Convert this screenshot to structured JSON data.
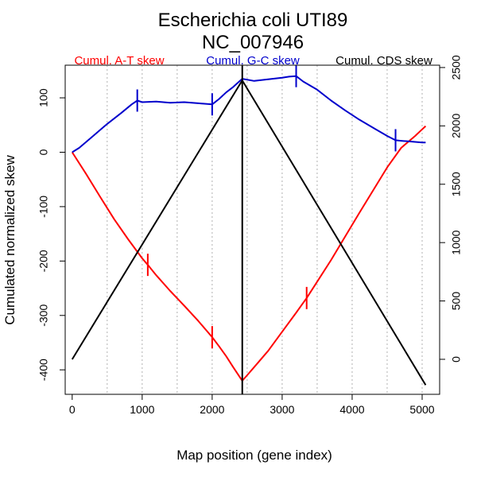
{
  "chart_data": {
    "type": "line",
    "title": "Escherichia coli UTI89",
    "subtitle": "NC_007946",
    "xlabel": "Map position (gene index)",
    "ylabel": "Cumulated normalized skew",
    "xlim": [
      -100,
      5250
    ],
    "ylim": [
      -445,
      160
    ],
    "y2lim": [
      -300,
      2520
    ],
    "x_ticks": [
      0,
      1000,
      2000,
      3000,
      4000,
      5000
    ],
    "y_ticks": [
      -400,
      -300,
      -200,
      -100,
      0,
      100
    ],
    "y2_ticks": [
      0,
      500,
      1000,
      1500,
      2000,
      2500
    ],
    "x_gridlines": [
      500,
      1000,
      1500,
      2000,
      2500,
      3000,
      3500,
      4000,
      4500,
      5000
    ],
    "grid": "vertical-dotted",
    "legend": [
      "Cumul. A-T skew",
      "Cumul. G-C skew",
      "Cumul. CDS skew"
    ],
    "colors": {
      "at": "#ff0000",
      "gc": "#0000cc",
      "cds": "#000000",
      "grid": "#b0b0b0"
    },
    "terminus_x": 2430,
    "series": [
      {
        "name": "Cumul. A-T skew",
        "axis": "left",
        "x": [
          0,
          200,
          400,
          600,
          800,
          1000,
          1100,
          1200,
          1400,
          1600,
          1800,
          2000,
          2100,
          2200,
          2300,
          2430,
          2500,
          2600,
          2800,
          3000,
          3200,
          3350,
          3500,
          3700,
          3900,
          4100,
          4300,
          4500,
          4700,
          4900,
          5000,
          5050
        ],
        "values": [
          0,
          -40,
          -82,
          -123,
          -160,
          -195,
          -210,
          -226,
          -255,
          -282,
          -310,
          -340,
          -357,
          -375,
          -395,
          -420,
          -410,
          -395,
          -365,
          -330,
          -295,
          -268,
          -238,
          -198,
          -155,
          -112,
          -70,
          -28,
          8,
          30,
          42,
          48
        ]
      },
      {
        "name": "Cumul. G-C skew",
        "axis": "left",
        "x": [
          0,
          100,
          300,
          500,
          700,
          850,
          930,
          1000,
          1200,
          1400,
          1600,
          1800,
          2000,
          2100,
          2200,
          2300,
          2430,
          2600,
          2800,
          3000,
          3100,
          3200,
          3300,
          3500,
          3700,
          3900,
          4100,
          4300,
          4500,
          4620,
          4700,
          4800,
          4900,
          5000,
          5050
        ],
        "values": [
          0,
          8,
          30,
          52,
          72,
          88,
          95,
          92,
          93,
          91,
          92,
          90,
          88,
          98,
          110,
          120,
          135,
          131,
          134,
          137,
          139,
          140,
          130,
          115,
          95,
          77,
          60,
          45,
          30,
          22,
          21,
          20,
          19,
          18,
          18
        ]
      },
      {
        "name": "Cumul. CDS skew",
        "axis": "right",
        "x": [
          0,
          2430,
          5050
        ],
        "values": [
          0,
          2390,
          -220
        ]
      }
    ],
    "ticks_markers": {
      "at": [
        1080,
        2000,
        3350
      ],
      "gc": [
        930,
        2000,
        3200,
        4620
      ]
    }
  }
}
